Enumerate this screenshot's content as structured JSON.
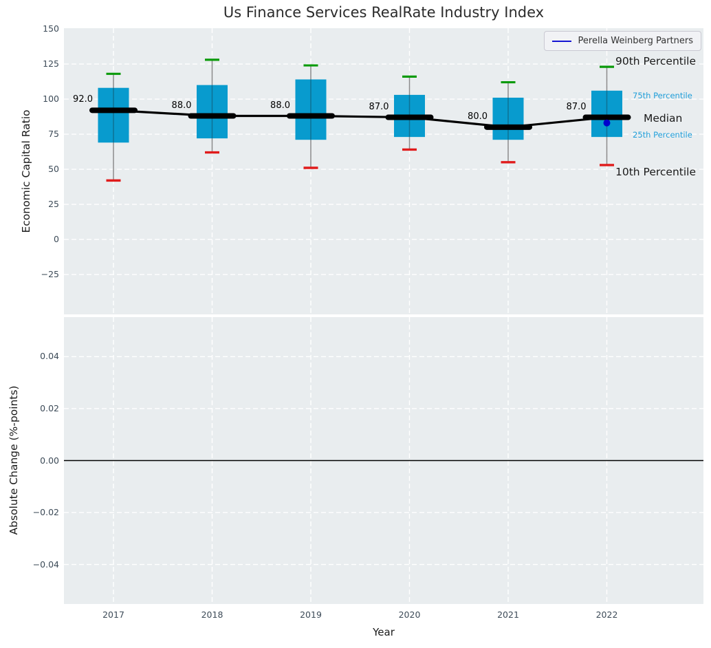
{
  "page": {
    "title": "Us Finance Services RealRate Industry Index"
  },
  "legend": {
    "label": "Perella Weinberg Partners"
  },
  "colors": {
    "box": "#089bce",
    "whisker": "#8a8a8a",
    "whisker_inner": "#0e7194",
    "cap_90th": "#0a9a0a",
    "cap_10th": "#e01b1b",
    "median": "#000000",
    "company_point": "#0000cd",
    "legend_line": "#1414d2",
    "percentile_label_small": "#1f9ed9",
    "tick_label": "#3c4a57",
    "axes_background": "#e9edef",
    "gridline": "#ffffff"
  },
  "chart_data": [
    {
      "type": "boxplot",
      "ylabel": "Economic Capital Ratio",
      "xlabel": "Year",
      "categories": [
        "2017",
        "2018",
        "2019",
        "2020",
        "2021",
        "2022"
      ],
      "ytick_labels": [
        "150",
        "125",
        "100",
        "75",
        "50",
        "25",
        "0",
        "−25"
      ],
      "ytick_values": [
        150,
        125,
        100,
        75,
        50,
        25,
        0,
        -25
      ],
      "ylim": [
        -53.4,
        150.5
      ],
      "grid": "white-dashed",
      "legend_position": "upper right",
      "boxes": [
        {
          "year": "2017",
          "p90": 118,
          "p75": 108,
          "median": 92.0,
          "p25": 69,
          "p10": 42,
          "median_label": "92.0"
        },
        {
          "year": "2018",
          "p90": 128,
          "p75": 110,
          "median": 88.0,
          "p25": 72,
          "p10": 62,
          "median_label": "88.0"
        },
        {
          "year": "2019",
          "p90": 124,
          "p75": 114,
          "median": 88.0,
          "p25": 71,
          "p10": 51,
          "median_label": "88.0"
        },
        {
          "year": "2020",
          "p90": 116,
          "p75": 103,
          "median": 87.0,
          "p25": 73,
          "p10": 64,
          "median_label": "87.0"
        },
        {
          "year": "2021",
          "p90": 112,
          "p75": 101,
          "median": 80.0,
          "p25": 71,
          "p10": 55,
          "median_label": "80.0"
        },
        {
          "year": "2022",
          "p90": 123,
          "p75": 106,
          "median": 87.0,
          "p25": 73,
          "p10": 53,
          "median_label": "87.0"
        }
      ],
      "median_line": [
        92.0,
        88.0,
        88.0,
        87.0,
        80.0,
        87.0
      ],
      "company_point": {
        "name": "Perella Weinberg Partners",
        "year": "2022",
        "value": 83
      },
      "percentile_labels": [
        {
          "text": "90th Percentile",
          "size": "large",
          "level": "p90"
        },
        {
          "text": "75th Percentile",
          "size": "small",
          "level": "p75"
        },
        {
          "text": "Median",
          "size": "large",
          "level": "median"
        },
        {
          "text": "25th Percentile",
          "size": "small",
          "level": "p25"
        },
        {
          "text": "10th Percentile",
          "size": "large",
          "level": "p10"
        }
      ]
    },
    {
      "type": "line",
      "ylabel": "Absolute Change (%-points)",
      "ytick_labels": [
        "0.04",
        "0.02",
        "0.00",
        "−0.02",
        "−0.04"
      ],
      "ytick_values": [
        0.04,
        0.02,
        0,
        -0.02,
        -0.04
      ],
      "ylim": [
        -0.0552,
        0.0552
      ],
      "grid": "white-dashed",
      "zero_line": true,
      "series": []
    }
  ]
}
